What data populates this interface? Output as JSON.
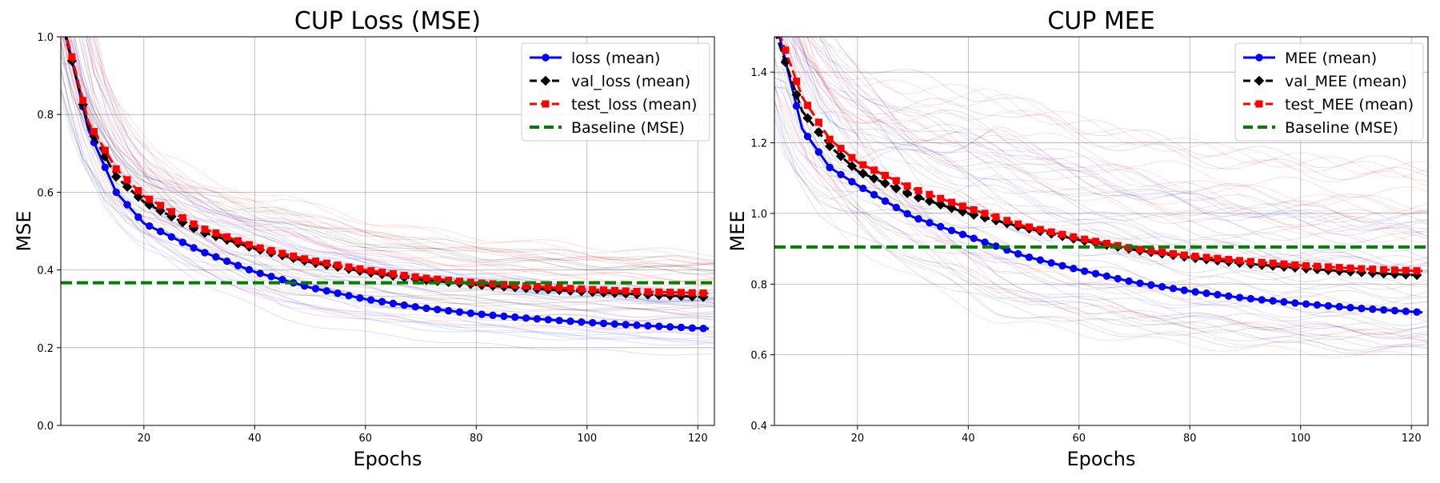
{
  "chart_data": [
    {
      "type": "line",
      "title": "CUP Loss (MSE)",
      "xlabel": "Epochs",
      "ylabel": "MSE",
      "xlim": [
        5,
        123
      ],
      "ylim": [
        0.0,
        1.0
      ],
      "xticks": [
        20,
        40,
        60,
        80,
        100,
        120
      ],
      "yticks": [
        0.0,
        0.2,
        0.4,
        0.6,
        0.8,
        1.0
      ],
      "ytick_labels": [
        "0.0",
        "0.2",
        "0.4",
        "0.6",
        "0.8",
        "1.0"
      ],
      "grid": true,
      "legend_position": "top-right",
      "series": [
        {
          "name": "loss (mean)",
          "color": "#0000ff",
          "style": "solid",
          "marker": "circle",
          "x": [
            5,
            10,
            15,
            20,
            30,
            40,
            50,
            60,
            70,
            80,
            90,
            100,
            110,
            120,
            122
          ],
          "y": [
            1.06,
            0.76,
            0.6,
            0.52,
            0.45,
            0.395,
            0.355,
            0.325,
            0.303,
            0.287,
            0.275,
            0.265,
            0.257,
            0.25,
            0.249
          ]
        },
        {
          "name": "val_loss (mean)",
          "color": "#000000",
          "style": "dashed",
          "marker": "diamond",
          "x": [
            5,
            10,
            15,
            20,
            30,
            40,
            50,
            60,
            70,
            80,
            90,
            100,
            110,
            120,
            122
          ],
          "y": [
            1.05,
            0.77,
            0.64,
            0.575,
            0.5,
            0.455,
            0.42,
            0.395,
            0.375,
            0.362,
            0.352,
            0.344,
            0.337,
            0.331,
            0.33
          ]
        },
        {
          "name": "test_loss (mean)",
          "color": "#ff0000",
          "style": "dashed",
          "marker": "square",
          "x": [
            5,
            10,
            15,
            20,
            30,
            40,
            50,
            60,
            70,
            80,
            90,
            100,
            110,
            120,
            122
          ],
          "y": [
            1.06,
            0.78,
            0.66,
            0.59,
            0.51,
            0.46,
            0.425,
            0.4,
            0.38,
            0.367,
            0.358,
            0.35,
            0.344,
            0.341,
            0.34
          ]
        },
        {
          "name": "Baseline (MSE)",
          "color": "#008000",
          "style": "dashed",
          "marker": "none",
          "x": [
            5,
            123
          ],
          "y": [
            0.367,
            0.367
          ]
        }
      ]
    },
    {
      "type": "line",
      "title": "CUP MEE",
      "xlabel": "Epochs",
      "ylabel": "MEE",
      "xlim": [
        5,
        123
      ],
      "ylim": [
        0.4,
        1.5
      ],
      "xticks": [
        20,
        40,
        60,
        80,
        100,
        120
      ],
      "yticks": [
        0.4,
        0.6,
        0.8,
        1.0,
        1.2,
        1.4
      ],
      "ytick_labels": [
        "0.4",
        "0.6",
        "0.8",
        "1.0",
        "1.2",
        "1.4"
      ],
      "grid": true,
      "legend_position": "top-right",
      "series": [
        {
          "name": "MEE (mean)",
          "color": "#0000ff",
          "style": "solid",
          "marker": "circle",
          "x": [
            5,
            10,
            15,
            20,
            30,
            40,
            50,
            60,
            70,
            80,
            90,
            100,
            110,
            120,
            122
          ],
          "y": [
            1.56,
            1.24,
            1.13,
            1.08,
            0.99,
            0.935,
            0.88,
            0.84,
            0.805,
            0.78,
            0.76,
            0.745,
            0.732,
            0.722,
            0.72
          ]
        },
        {
          "name": "val_MEE (mean)",
          "color": "#000000",
          "style": "dashed",
          "marker": "diamond",
          "x": [
            5,
            10,
            15,
            20,
            30,
            40,
            50,
            60,
            70,
            80,
            90,
            100,
            110,
            120,
            122
          ],
          "y": [
            1.52,
            1.29,
            1.19,
            1.12,
            1.05,
            1.0,
            0.96,
            0.925,
            0.897,
            0.875,
            0.858,
            0.845,
            0.834,
            0.826,
            0.825
          ]
        },
        {
          "name": "test_MEE (mean)",
          "color": "#ff0000",
          "style": "dashed",
          "marker": "square",
          "x": [
            5,
            10,
            15,
            20,
            30,
            40,
            50,
            60,
            70,
            80,
            90,
            100,
            110,
            120,
            122
          ],
          "y": [
            1.55,
            1.33,
            1.21,
            1.145,
            1.07,
            1.015,
            0.965,
            0.93,
            0.9,
            0.88,
            0.865,
            0.853,
            0.844,
            0.838,
            0.837
          ]
        },
        {
          "name": "Baseline (MSE)",
          "color": "#008000",
          "style": "dashed",
          "marker": "none",
          "x": [
            5,
            123
          ],
          "y": [
            0.905,
            0.905
          ]
        }
      ]
    }
  ]
}
